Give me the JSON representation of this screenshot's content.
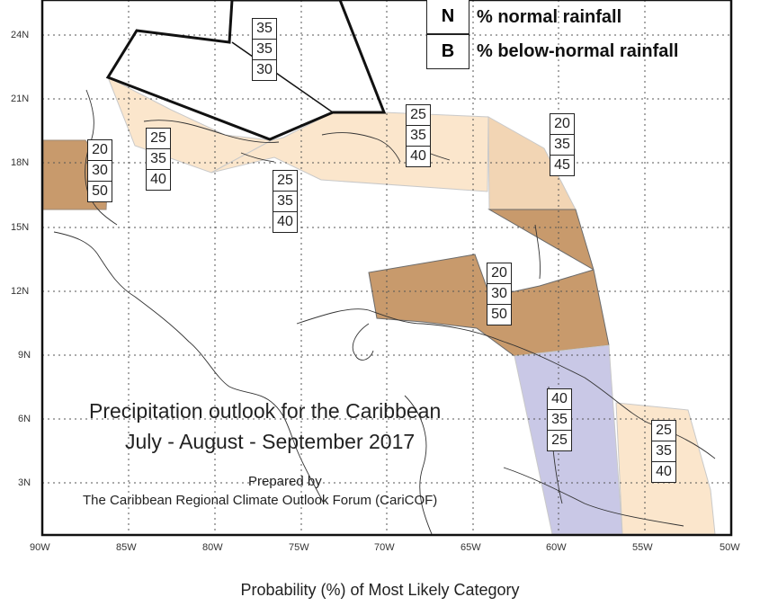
{
  "legend": {
    "items": [
      {
        "key": "N",
        "text": "% normal rainfall"
      },
      {
        "key": "B",
        "text": "% below-normal rainfall"
      }
    ]
  },
  "title": {
    "line1": "Precipitation outlook for the Caribbean",
    "line2": "July - August - September 2017"
  },
  "credit": {
    "line1": "Prepared by",
    "line2": "The Caribbean Regional Climate Outlook Forum (CariCOF)"
  },
  "footer": "Probability (%) of Most Likely Category",
  "axes": {
    "lat_labels": [
      "24N",
      "21N",
      "18N",
      "15N",
      "12N",
      "9N",
      "6N",
      "3N"
    ],
    "lon_labels": [
      "90W",
      "85W",
      "80W",
      "75W",
      "70W",
      "65W",
      "60W",
      "55W",
      "50W"
    ]
  },
  "colors": {
    "light_tan": "#fbe6cc",
    "brown": "#c89a6c",
    "lavender": "#c9c8e6",
    "outline": "#111111"
  },
  "probability_boxes": [
    {
      "id": "bahamas",
      "values": [
        "35",
        "35",
        "30"
      ]
    },
    {
      "id": "belize",
      "values": [
        "20",
        "30",
        "50"
      ]
    },
    {
      "id": "cuba-jamaica",
      "values": [
        "25",
        "35",
        "40"
      ]
    },
    {
      "id": "jamaica-south",
      "values": [
        "25",
        "35",
        "40"
      ]
    },
    {
      "id": "hispaniola-pr",
      "values": [
        "25",
        "35",
        "40"
      ]
    },
    {
      "id": "leeward-islands",
      "values": [
        "20",
        "35",
        "45"
      ]
    },
    {
      "id": "windward-abc",
      "values": [
        "20",
        "30",
        "50"
      ]
    },
    {
      "id": "guyana",
      "values": [
        "40",
        "35",
        "25"
      ]
    },
    {
      "id": "suriname-french-guiana",
      "values": [
        "25",
        "35",
        "40"
      ]
    }
  ]
}
